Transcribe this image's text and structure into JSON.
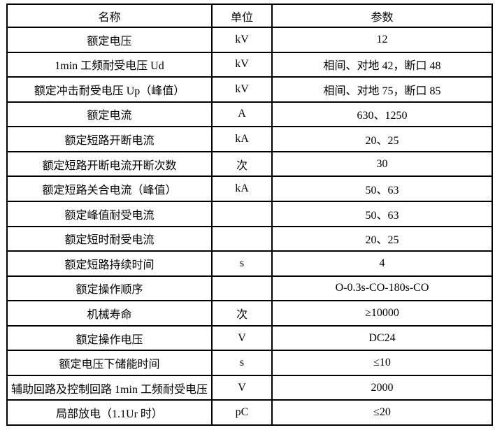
{
  "table": {
    "border_color": "#000000",
    "text_color": "#000000",
    "background": "#ffffff",
    "headers": {
      "name": "名称",
      "unit": "单位",
      "value": "参数"
    },
    "rows": [
      {
        "name": "额定电压",
        "unit": "kV",
        "value": "12"
      },
      {
        "name": "1min 工频耐受电压 Ud",
        "unit": "kV",
        "value": "相间、对地 42，断口 48"
      },
      {
        "name": "额定冲击耐受电压 Up（峰值）",
        "unit": "kV",
        "value": "相间、对地 75，断口 85"
      },
      {
        "name": "额定电流",
        "unit": "A",
        "value": "630、1250"
      },
      {
        "name": "额定短路开断电流",
        "unit": "kA",
        "value": "20、25"
      },
      {
        "name": "额定短路开断电流开断次数",
        "unit": "次",
        "value": "30"
      },
      {
        "name": "额定短路关合电流（峰值）",
        "unit": "kA",
        "value": "50、63"
      },
      {
        "name": "额定峰值耐受电流",
        "unit": "",
        "value": "50、63"
      },
      {
        "name": "额定短时耐受电流",
        "unit": "",
        "value": "20、25"
      },
      {
        "name": "额定短路持续时间",
        "unit": "s",
        "value": "4"
      },
      {
        "name": "额定操作顺序",
        "unit": "",
        "value": "O-0.3s-CO-180s-CO"
      },
      {
        "name": "机械寿命",
        "unit": "次",
        "value": "≥10000"
      },
      {
        "name": "额定操作电压",
        "unit": "V",
        "value": "DC24"
      },
      {
        "name": "额定电压下储能时间",
        "unit": "s",
        "value": "≤10"
      },
      {
        "name": "辅助回路及控制回路 1min 工频耐受电压",
        "unit": "V",
        "value": "2000"
      },
      {
        "name": "局部放电（1.1Ur 时）",
        "unit": "pC",
        "value": "≤20"
      }
    ]
  }
}
